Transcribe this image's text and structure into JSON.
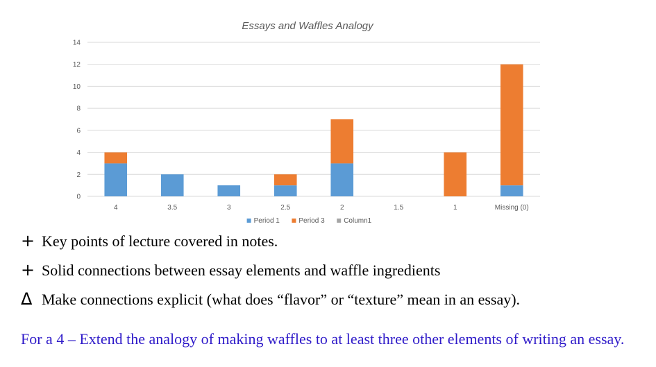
{
  "chart_data": {
    "type": "bar",
    "stacked": true,
    "title": "Essays and Waffles Analogy",
    "categories": [
      "4",
      "3.5",
      "3",
      "2.5",
      "2",
      "1.5",
      "1",
      "Missing (0)"
    ],
    "series": [
      {
        "name": "Period 1",
        "color": "#5b9bd5",
        "values": [
          3,
          2,
          1,
          1,
          3,
          0,
          0,
          1
        ]
      },
      {
        "name": "Period 3",
        "color": "#ed7d31",
        "values": [
          1,
          0,
          0,
          1,
          4,
          0,
          4,
          11
        ]
      },
      {
        "name": "Column1",
        "color": "#a5a5a5",
        "values": [
          0,
          0,
          0,
          0,
          0,
          0,
          0,
          0
        ]
      }
    ],
    "y_ticks": [
      "0",
      "2",
      "4",
      "6",
      "8",
      "10",
      "12",
      "14"
    ],
    "ylim": [
      0,
      14
    ],
    "grid": true,
    "legend": "bottom"
  },
  "notes": [
    {
      "symbol": "+",
      "text": "Key points of lecture covered in notes."
    },
    {
      "symbol": "+",
      "text": "Solid connections between essay elements and waffle ingredients"
    },
    {
      "symbol": "Δ",
      "text": "Make connections explicit (what does “flavor” or “texture” mean in an essay)."
    }
  ],
  "grade_note": "For a 4 – Extend the analogy of making waffles to at least three other elements of writing an essay."
}
